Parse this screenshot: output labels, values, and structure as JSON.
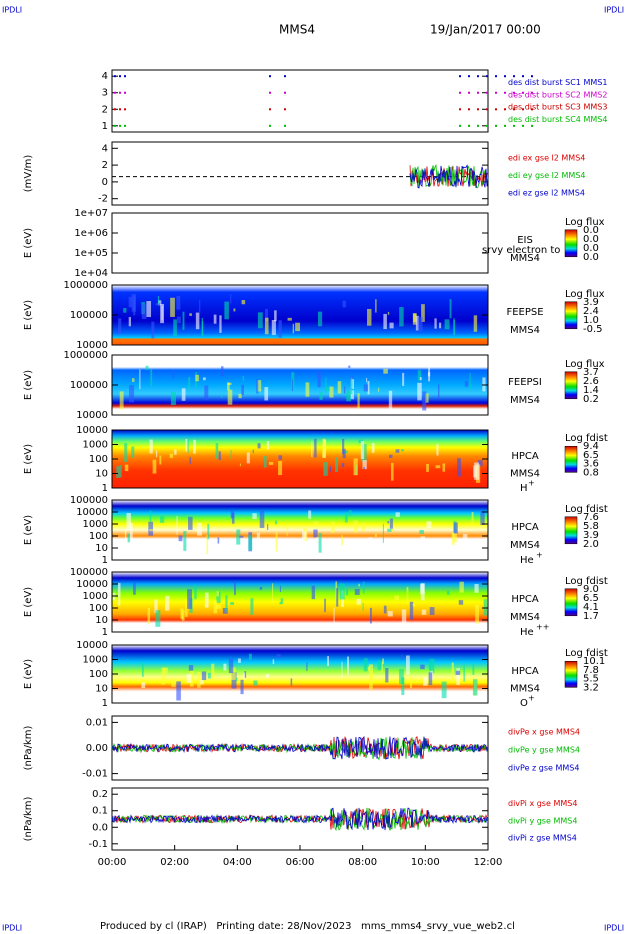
{
  "header": {
    "corner_left": "IPDLI",
    "corner_right": "IPDLI",
    "title": "MMS4",
    "date": "19/Jan/2017 00:00"
  },
  "panels": [
    {
      "kind": "burst",
      "y_ticks": [
        "4",
        "3",
        "2",
        "1"
      ],
      "legend": [
        {
          "text": "des dist burst SC1 MMS1",
          "color": "#0000cc"
        },
        {
          "text": "des dist burst SC2 MMS2",
          "color": "#cc00cc"
        },
        {
          "text": "des dist burst SC3 MMS3",
          "color": "#cc0000"
        },
        {
          "text": "des dist burst SC4 MMS4",
          "color": "#00bb00"
        }
      ]
    },
    {
      "kind": "lines",
      "y_label": "(mV/m)",
      "y_ticks": [
        "4",
        "2",
        "0",
        "-2"
      ],
      "legend": [
        {
          "text": "edi ex gse l2 MMS4",
          "color": "#dd0000"
        },
        {
          "text": "edi ey gse l2 MMS4",
          "color": "#00bb00"
        },
        {
          "text": "edi ez gse l2 MMS4",
          "color": "#0000cc"
        }
      ]
    },
    {
      "kind": "spectro",
      "empty": true,
      "y_label": "E (eV)",
      "y_ticks": [
        "1e+07",
        "1e+06",
        "1e+05",
        "1e+04"
      ],
      "labels": [
        "EIS",
        "MMS4"
      ],
      "overlay": "srvy electron to",
      "colorbar": {
        "title": "Log flux",
        "ticks": [
          "0.0",
          "0.0",
          "0.0",
          "0.0"
        ]
      }
    },
    {
      "kind": "spectro",
      "y_label": "E (eV)",
      "y_ticks": [
        "1000000",
        "100000",
        "10000"
      ],
      "labels": [
        "FEEPSE",
        "MMS4"
      ],
      "colorbar": {
        "title": "Log flux",
        "ticks": [
          "3.9",
          "2.4",
          "1.0",
          "-0.5"
        ]
      }
    },
    {
      "kind": "spectro",
      "y_label": "E (eV)",
      "y_ticks": [
        "1000000",
        "100000",
        "10000"
      ],
      "labels": [
        "FEEPSI",
        "MMS4"
      ],
      "colorbar": {
        "title": "Log flux",
        "ticks": [
          "3.7",
          "2.6",
          "1.4",
          "0.2"
        ]
      }
    },
    {
      "kind": "spectro",
      "y_label": "E (eV)",
      "y_ticks": [
        "10000",
        "1000",
        "100",
        "10",
        "1"
      ],
      "labels": [
        "HPCA",
        "MMS4"
      ],
      "species": {
        "base": "H",
        "sup": "+"
      },
      "colorbar": {
        "title": "Log fdist",
        "ticks": [
          "9.4",
          "6.5",
          "3.6",
          "0.8"
        ]
      }
    },
    {
      "kind": "spectro",
      "y_label": "E (eV)",
      "y_ticks": [
        "100000",
        "10000",
        "1000",
        "100",
        "10",
        "1"
      ],
      "labels": [
        "HPCA",
        "MMS4"
      ],
      "species": {
        "base": "He",
        "sup": "+"
      },
      "colorbar": {
        "title": "Log fdist",
        "ticks": [
          "7.6",
          "5.8",
          "3.9",
          "2.0"
        ]
      }
    },
    {
      "kind": "spectro",
      "y_label": "E (eV)",
      "y_ticks": [
        "100000",
        "10000",
        "1000",
        "100",
        "10",
        "1"
      ],
      "labels": [
        "HPCA",
        "MMS4"
      ],
      "species": {
        "base": "He",
        "sup": "++"
      },
      "colorbar": {
        "title": "Log fdist",
        "ticks": [
          "9.0",
          "6.5",
          "4.1",
          "1.7"
        ]
      }
    },
    {
      "kind": "spectro",
      "y_label": "E (eV)",
      "y_ticks": [
        "10000",
        "1000",
        "100",
        "10",
        "1"
      ],
      "labels": [
        "HPCA",
        "MMS4"
      ],
      "species": {
        "base": "O",
        "sup": "+"
      },
      "colorbar": {
        "title": "Log fdist",
        "ticks": [
          "10.1",
          "7.8",
          "5.5",
          "3.2"
        ]
      }
    },
    {
      "kind": "lines",
      "y_label": "(nPa/km)",
      "y_ticks": [
        "0.01",
        "0.00",
        "-0.01"
      ],
      "legend": [
        {
          "text": "divPe x gse MMS4",
          "color": "#dd0000"
        },
        {
          "text": "divPe y gse MMS4",
          "color": "#00bb00"
        },
        {
          "text": "divPe z gse MMS4",
          "color": "#0000cc"
        }
      ]
    },
    {
      "kind": "lines",
      "y_label": "(nPa/km)",
      "y_ticks": [
        "0.2",
        "0.1",
        "0.0",
        "-0.1"
      ],
      "legend": [
        {
          "text": "divPi x gse MMS4",
          "color": "#dd0000"
        },
        {
          "text": "divPi y gse MMS4",
          "color": "#00bb00"
        },
        {
          "text": "divPi z gse MMS4",
          "color": "#0000cc"
        }
      ]
    }
  ],
  "x_ticks": [
    "00:00",
    "02:00",
    "04:00",
    "06:00",
    "08:00",
    "10:00",
    "12:00"
  ],
  "footer": "Produced by cl (IRAP)   Printing date: 28/Nov/2023   mms_mms4_srvy_vue_web2.cl"
}
